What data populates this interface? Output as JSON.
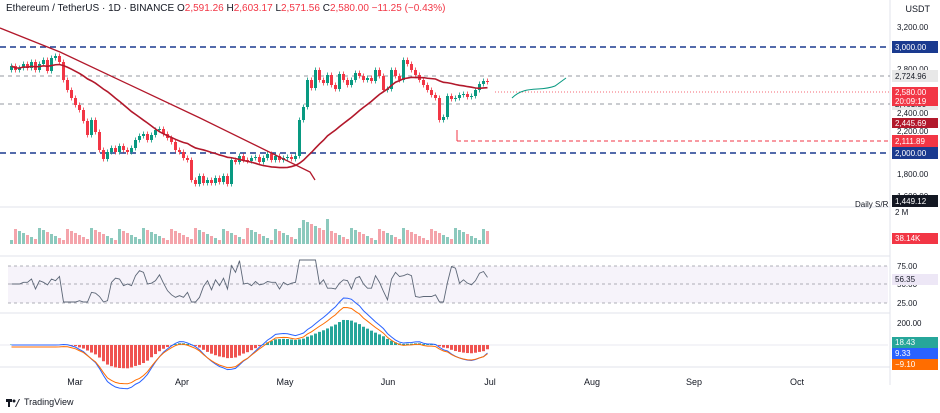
{
  "header": {
    "symbol": "Ethereum / TetherUS · 1D · BINANCE",
    "o_label": "O",
    "o_value": "2,591.26",
    "h_label": "H",
    "h_value": "2,603.17",
    "l_label": "L",
    "l_value": "2,571.56",
    "c_label": "C",
    "c_value": "2,580.00",
    "change": "−11.25 (−0.43%)"
  },
  "currency": "USDT",
  "watermark": "TradingView",
  "colors": {
    "up": "#089981",
    "down": "#f23645",
    "ma": "#b2182b",
    "level": "#1a3a8f",
    "support": "#f23645",
    "rsi": "#5d6777",
    "macd": "#2962ff",
    "signal": "#ff6d00"
  },
  "chart_data": {
    "type": "candlestick",
    "price_ticks": [
      "3,200.00",
      "2,800.00",
      "2,400.00",
      "2,200.00",
      "1,800.00",
      "1,600.00"
    ],
    "x_ticks": [
      "Mar",
      "Apr",
      "May",
      "Jun",
      "Jul",
      "Aug",
      "Sep",
      "Oct"
    ],
    "levels": [
      {
        "label": "3,000.00",
        "style": "dashed-blue"
      },
      {
        "label": "2,724.96",
        "style": "dashed-gray"
      },
      {
        "label": "2,461.00",
        "style": "dashed-gray"
      },
      {
        "label": "2,111.89",
        "style": "dashed-red"
      },
      {
        "label": "2,000.00",
        "style": "dashed-blue"
      },
      {
        "label": "1,449.12",
        "style": "solid-dark"
      }
    ],
    "price_labels": [
      {
        "label": "2,580.00"
      },
      {
        "label": "20:09:19"
      },
      {
        "label": "2,445.69"
      }
    ],
    "sr_label": "Daily S/R",
    "volume": {
      "scale_label": "2 M",
      "last_label": "38.14K"
    },
    "rsi": {
      "ticks": [
        "75.00",
        "50.00",
        "25.00"
      ],
      "value": "56.35"
    },
    "macd": {
      "ticks": [
        "200.00"
      ],
      "values": [
        "18.43",
        "9.33",
        "−9.10"
      ]
    }
  }
}
